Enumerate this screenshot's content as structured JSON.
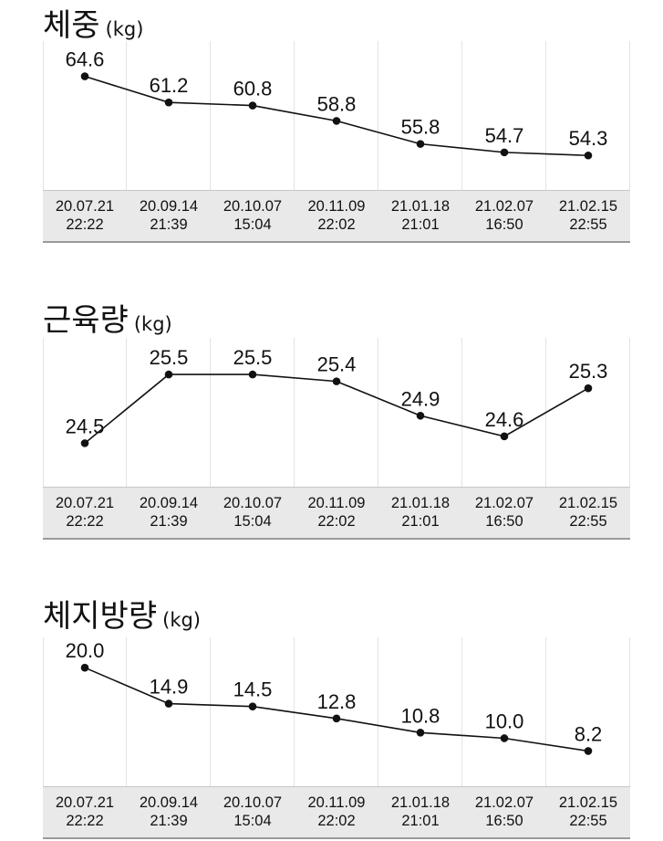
{
  "charts": [
    {
      "title": "체중",
      "unit": "(kg)",
      "chart_data": {
        "type": "line",
        "categories": [
          [
            "20.07.21",
            "22:22"
          ],
          [
            "20.09.14",
            "21:39"
          ],
          [
            "20.10.07",
            "15:04"
          ],
          [
            "20.11.09",
            "22:02"
          ],
          [
            "21.01.18",
            "21:01"
          ],
          [
            "21.02.07",
            "16:50"
          ],
          [
            "21.02.15",
            "22:55"
          ]
        ],
        "values": [
          64.6,
          61.2,
          60.8,
          58.8,
          55.8,
          54.7,
          54.3
        ],
        "labels": [
          "64.6",
          "61.2",
          "60.8",
          "58.8",
          "55.8",
          "54.7",
          "54.3"
        ],
        "ylim": [
          51.0,
          68.0
        ],
        "grid": true,
        "axis_color": "#e3e3e3"
      }
    },
    {
      "title": "근육량",
      "unit": "(kg)",
      "chart_data": {
        "type": "line",
        "categories": [
          [
            "20.07.21",
            "22:22"
          ],
          [
            "20.09.14",
            "21:39"
          ],
          [
            "20.10.07",
            "15:04"
          ],
          [
            "20.11.09",
            "22:02"
          ],
          [
            "21.01.18",
            "21:01"
          ],
          [
            "21.02.07",
            "16:50"
          ],
          [
            "21.02.15",
            "22:55"
          ]
        ],
        "values": [
          24.5,
          25.5,
          25.5,
          25.4,
          24.9,
          24.6,
          25.3
        ],
        "labels": [
          "24.5",
          "25.5",
          "25.5",
          "25.4",
          "24.9",
          "24.6",
          "25.3"
        ],
        "ylim": [
          24.0,
          25.9
        ],
        "grid": true,
        "axis_color": "#e3e3e3"
      }
    },
    {
      "title": "체지방량",
      "unit": "(kg)",
      "chart_data": {
        "type": "line",
        "categories": [
          [
            "20.07.21",
            "22:22"
          ],
          [
            "20.09.14",
            "21:39"
          ],
          [
            "20.10.07",
            "15:04"
          ],
          [
            "20.11.09",
            "22:02"
          ],
          [
            "21.01.18",
            "21:01"
          ],
          [
            "21.02.07",
            "16:50"
          ],
          [
            "21.02.15",
            "22:55"
          ]
        ],
        "values": [
          20.0,
          14.9,
          14.5,
          12.8,
          10.8,
          10.0,
          8.2
        ],
        "labels": [
          "20.0",
          "14.9",
          "14.5",
          "12.8",
          "10.8",
          "10.0",
          "8.2"
        ],
        "ylim": [
          4.5,
          23.0
        ],
        "grid": true,
        "axis_color": "#e3e3e3"
      }
    }
  ]
}
